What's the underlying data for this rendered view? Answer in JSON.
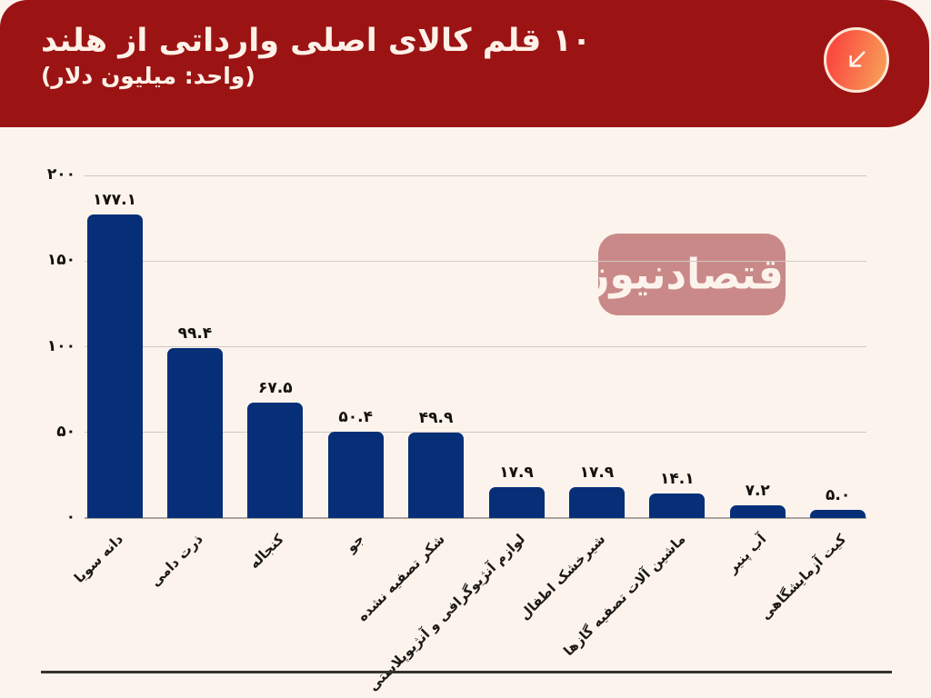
{
  "header": {
    "title": "۱۰ قلم کالای اصلی وارداتی از هلند",
    "subtitle": "(واحد: میلیون دلار)",
    "background_color": "#9c1313",
    "text_color": "#fdf1e8",
    "icon": "arrow-down-left-icon",
    "icon_gradient": [
      "#fb4a40",
      "#f89b57"
    ],
    "icon_border_color": "#fbe7d6"
  },
  "watermark": {
    "text": "اقتصادنیوز",
    "background_color": "#c88484",
    "text_color": "#fdf5ed"
  },
  "chart_data": {
    "type": "bar",
    "title": "۱۰ قلم کالای اصلی وارداتی از هلند",
    "unit_label": "(واحد: میلیون دلار)",
    "categories": [
      "دانه سویا",
      "ذرت دامی",
      "کنجاله",
      "جو",
      "شکر تصفیه نشده",
      "لوازم آنژیوگرافی و آنژیوپلاستی",
      "شیرخشک اطفال",
      "ماشین آلات تصفیه گازها",
      "آب پنیر",
      "کیت آزمایشگاهی"
    ],
    "values": [
      177.1,
      99.4,
      67.5,
      50.4,
      49.9,
      17.9,
      17.9,
      14.1,
      7.2,
      5.0
    ],
    "value_labels": [
      "۱۷۷.۱",
      "۹۹.۴",
      "۶۷.۵",
      "۵۰.۴",
      "۴۹.۹",
      "۱۷.۹",
      "۱۷.۹",
      "۱۴.۱",
      "۷.۲",
      "۵.۰"
    ],
    "y_ticks": [
      0,
      50,
      100,
      150,
      200
    ],
    "y_tick_labels": [
      "۰",
      "۵۰",
      "۱۰۰",
      "۱۵۰",
      "۲۰۰"
    ],
    "ylim": [
      0,
      200
    ],
    "bar_color": "#062f78",
    "grid": true,
    "legend": false,
    "xlabel": "",
    "ylabel": ""
  }
}
